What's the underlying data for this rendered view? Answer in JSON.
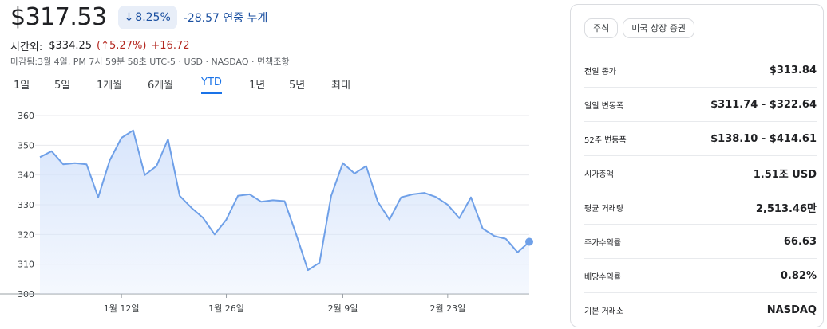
{
  "quote": {
    "price": "$317.53",
    "change_arrow": "↓",
    "change_pct": "8.25%",
    "change_text": "-28.57 연중 누계",
    "after_label": "시간외:",
    "after_price": "$334.25",
    "after_open": "(",
    "after_arrow": "↑",
    "after_pct": "5.27%)",
    "after_abs": "+16.72",
    "close_info": "마감됨:3월 4일, PM 7시 59분 58초 UTC-5 · USD · NASDAQ · 면책조항"
  },
  "tabs": [
    {
      "label": "1일"
    },
    {
      "label": "5일"
    },
    {
      "label": "1개월"
    },
    {
      "label": "6개월"
    },
    {
      "label": "YTD"
    },
    {
      "label": "1년"
    },
    {
      "label": "5년"
    },
    {
      "label": "최대"
    }
  ],
  "active_tab": "YTD",
  "colors": {
    "line": "#6fa0e8",
    "fill_top": "#d6e4fb",
    "grid": "#e8eaed",
    "accent": "#1a73e8",
    "negative": "#b3261e"
  },
  "chart_data": {
    "type": "area",
    "ylim": [
      300,
      360
    ],
    "yticks": [
      "360",
      "350",
      "340",
      "330",
      "320",
      "310",
      "300"
    ],
    "xtick_labels": [
      {
        "label": "1월 12일",
        "index": 7
      },
      {
        "label": "1월 26일",
        "index": 16
      },
      {
        "label": "2월 9일",
        "index": 26
      },
      {
        "label": "2월 23일",
        "index": 35
      }
    ],
    "values": [
      346,
      348,
      343.6,
      344,
      343.6,
      332.5,
      345,
      352.5,
      355,
      340,
      343,
      352,
      333,
      329,
      325.6,
      320,
      325,
      333,
      333.5,
      331,
      331.5,
      331.2,
      320,
      308,
      310.5,
      333,
      344,
      340.5,
      343,
      331,
      325,
      332.5,
      333.5,
      334,
      332.6,
      330,
      325.5,
      332.5,
      322,
      319.5,
      318.5,
      314,
      317.53
    ]
  },
  "stats": {
    "pills": [
      "주식",
      "미국 상장 증권"
    ],
    "rows": [
      {
        "label": "전일 종가",
        "value": "$313.84"
      },
      {
        "label": "일일 변동폭",
        "value": "$311.74 - $322.64"
      },
      {
        "label": "52주 변동폭",
        "value": "$138.10 - $414.61"
      },
      {
        "label": "시가총액",
        "value": "1.51조 USD"
      },
      {
        "label": "평균 거래량",
        "value": "2,513.46만"
      },
      {
        "label": "주가수익률",
        "value": "66.63"
      },
      {
        "label": "배당수익률",
        "value": "0.82%"
      },
      {
        "label": "기본 거래소",
        "value": "NASDAQ"
      }
    ]
  }
}
